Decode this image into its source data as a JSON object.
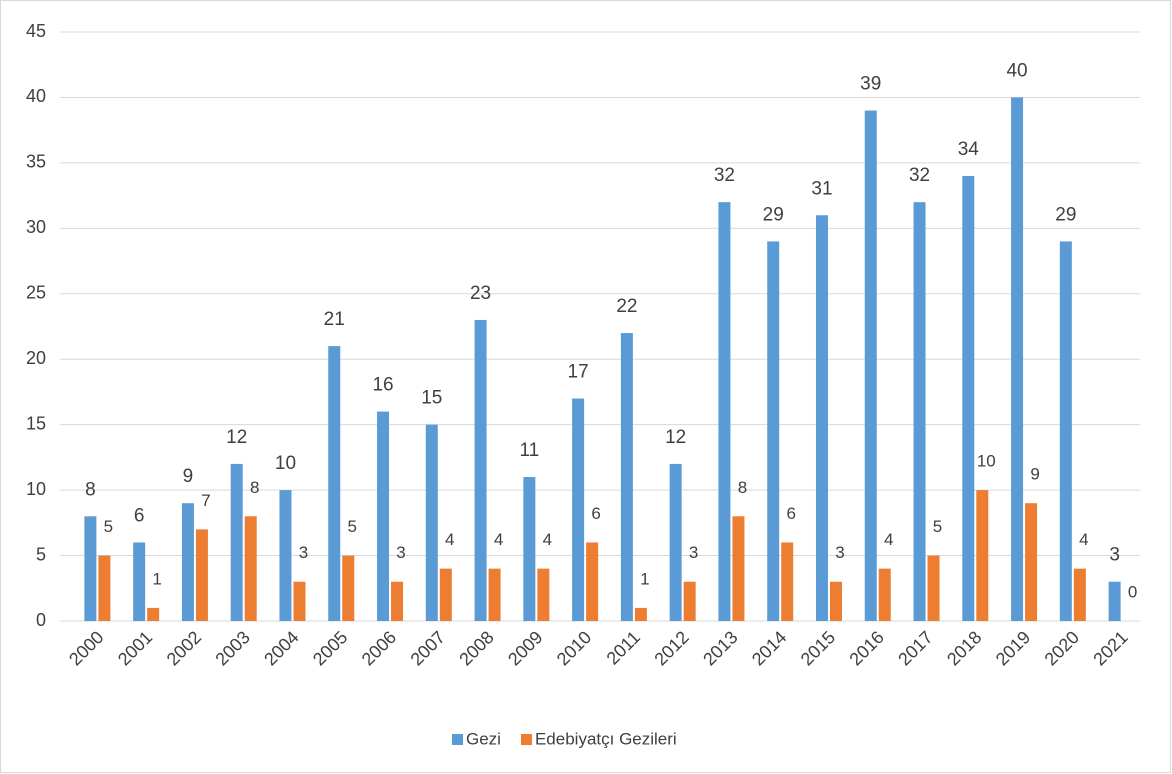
{
  "chart_data": {
    "type": "bar",
    "categories": [
      "2000",
      "2001",
      "2002",
      "2003",
      "2004",
      "2005",
      "2006",
      "2007",
      "2008",
      "2009",
      "2010",
      "2011",
      "2012",
      "2013",
      "2014",
      "2015",
      "2016",
      "2017",
      "2018",
      "2019",
      "2020",
      "2021"
    ],
    "series": [
      {
        "name": "Gezi",
        "color": "#5b9bd5",
        "values": [
          8,
          6,
          9,
          12,
          10,
          21,
          16,
          15,
          23,
          11,
          17,
          22,
          12,
          32,
          29,
          31,
          39,
          32,
          34,
          40,
          29,
          3
        ]
      },
      {
        "name": "Edebiyatçı Gezileri",
        "color": "#ed7d31",
        "values": [
          5,
          1,
          7,
          8,
          3,
          5,
          3,
          4,
          4,
          4,
          6,
          1,
          3,
          8,
          6,
          3,
          4,
          5,
          10,
          9,
          4,
          0
        ]
      }
    ],
    "ylim": [
      0,
      45
    ],
    "yticks": [
      0,
      5,
      10,
      15,
      20,
      25,
      30,
      35,
      40,
      45
    ],
    "grid": true,
    "legend": "bottom"
  }
}
